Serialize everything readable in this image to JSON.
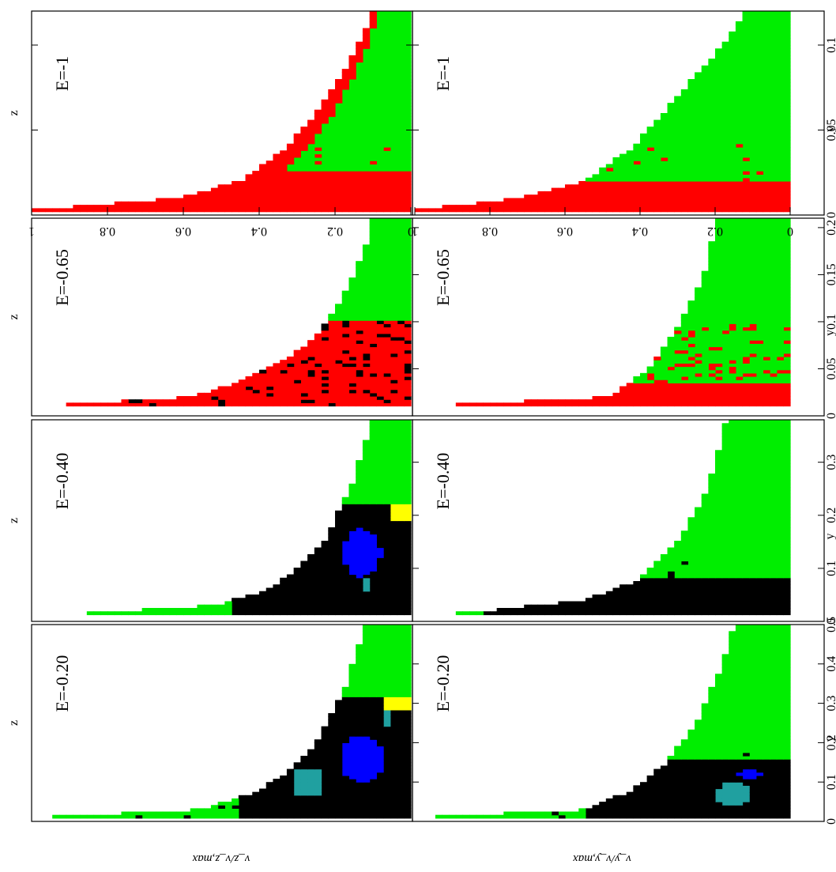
{
  "figure": {
    "axis_label_top_rows": "z",
    "axis_label_bottom_rows": "y",
    "ylabel_top_row": "v_z/v_z,max",
    "ylabel_bottom_row": "v_y/v_y,max"
  },
  "colors": {
    "regular_green": "#00ee00",
    "red": "#ff0000",
    "black": "#000000",
    "blue": "#0000ff",
    "teal": "#20a0a0",
    "yellow": "#ffff00",
    "magenta": "#ff00ff",
    "orange": "#ff9900"
  },
  "chart_data": [
    {
      "type": "heatmap",
      "row": "z",
      "energy_label": "E=-1",
      "xlabel": "z",
      "ylabel": "v_z/v_z,max",
      "xlim": [
        0,
        0.12
      ],
      "ylim": [
        0,
        1
      ],
      "xticks": [
        0,
        0.05,
        0.1
      ],
      "xtick_labels": [],
      "yticks": [
        0,
        0.2,
        0.4,
        0.6,
        0.8,
        1
      ],
      "ytick_labels": [
        "0",
        "0.2",
        "0.4",
        "0.6",
        "0.8",
        "1"
      ],
      "boundary": [
        [
          0.003,
          1.0
        ],
        [
          0.01,
          0.62
        ],
        [
          0.02,
          0.45
        ],
        [
          0.04,
          0.33
        ],
        [
          0.06,
          0.25
        ],
        [
          0.08,
          0.19
        ],
        [
          0.1,
          0.14
        ],
        [
          0.12,
          0.1
        ]
      ],
      "regions": [
        {
          "color": "red",
          "x": [
            0.003,
            0.025
          ],
          "y": [
            0.0,
            1.0
          ]
        },
        {
          "color": "red",
          "x": [
            0.025,
            0.12
          ],
          "y_frac_of_boundary": [
            0.82,
            1.0
          ]
        }
      ]
    },
    {
      "type": "heatmap",
      "row": "z",
      "energy_label": "E=-0.65",
      "xlabel": "z",
      "ylabel": "v_z/v_z,max",
      "xlim": [
        0,
        0.21
      ],
      "ylim": [
        0,
        1
      ],
      "boundary": [
        [
          0.01,
          1.0
        ],
        [
          0.02,
          0.58
        ],
        [
          0.04,
          0.43
        ],
        [
          0.06,
          0.33
        ],
        [
          0.08,
          0.26
        ],
        [
          0.1,
          0.22
        ],
        [
          0.14,
          0.16
        ],
        [
          0.2,
          0.1
        ]
      ],
      "regions": [
        {
          "color": "red",
          "x": [
            0.005,
            0.1
          ],
          "y": [
            0.0,
            1.0
          ]
        },
        {
          "color": "black",
          "x": [
            0.005,
            0.1
          ],
          "scatter": true
        }
      ]
    },
    {
      "type": "heatmap",
      "row": "z",
      "energy_label": "E=-0.40",
      "xlabel": "z",
      "ylabel": "v_z/v_z,max",
      "xlim": [
        0,
        0.38
      ],
      "ylim": [
        0,
        1
      ],
      "boundary": [
        [
          0.01,
          1.0
        ],
        [
          0.03,
          0.52
        ],
        [
          0.06,
          0.38
        ],
        [
          0.1,
          0.3
        ],
        [
          0.15,
          0.23
        ],
        [
          0.25,
          0.16
        ],
        [
          0.38,
          0.1
        ]
      ],
      "regions": [
        {
          "color": "black",
          "x": [
            0.005,
            0.22
          ],
          "y": [
            0.0,
            0.48
          ]
        },
        {
          "color": "blue",
          "center": [
            0.13,
            0.13
          ],
          "size": [
            0.09,
            0.1
          ]
        },
        {
          "color": "yellow",
          "x": [
            0.19,
            0.22
          ],
          "y": [
            0.0,
            0.05
          ]
        },
        {
          "color": "teal",
          "x": [
            0.06,
            0.08
          ],
          "y": [
            0.1,
            0.12
          ]
        }
      ]
    },
    {
      "type": "heatmap",
      "row": "z",
      "energy_label": "E=-0.20",
      "xlabel": "z",
      "ylabel": "v_z/v_z,max",
      "xlim": [
        0,
        0.5
      ],
      "ylim": [
        0,
        1
      ],
      "boundary": [
        [
          0.01,
          1.0
        ],
        [
          0.03,
          0.56
        ],
        [
          0.07,
          0.42
        ],
        [
          0.12,
          0.33
        ],
        [
          0.2,
          0.25
        ],
        [
          0.35,
          0.17
        ],
        [
          0.5,
          0.12
        ]
      ],
      "regions": [
        {
          "color": "black",
          "x": [
            0.01,
            0.32
          ],
          "y": [
            0.0,
            0.46
          ]
        },
        {
          "color": "blue",
          "center": [
            0.16,
            0.13
          ],
          "size": [
            0.12,
            0.12
          ]
        },
        {
          "color": "yellow",
          "x": [
            0.28,
            0.32
          ],
          "y": [
            0.0,
            0.08
          ]
        },
        {
          "color": "teal",
          "x": [
            0.24,
            0.28
          ],
          "y": [
            0.05,
            0.08
          ]
        },
        {
          "color": "teal",
          "x": [
            0.07,
            0.13
          ],
          "y": [
            0.24,
            0.3
          ]
        }
      ]
    },
    {
      "type": "heatmap",
      "row": "y",
      "energy_label": "E=-1",
      "xlabel": "y",
      "ylabel": "v_y/v_y,max",
      "xlim": [
        0,
        0.12
      ],
      "ylim": [
        0,
        1
      ],
      "xticks": [
        0,
        0.05,
        0.1
      ],
      "xtick_labels": [
        "0",
        "0.05",
        "0.1"
      ],
      "yticks": [
        0,
        0.2,
        0.4,
        0.6,
        0.8,
        1
      ],
      "ytick_labels": [
        "0",
        "0.2",
        "0.4",
        "0.6",
        "0.8",
        "1"
      ],
      "boundary": [
        [
          0.003,
          1.0
        ],
        [
          0.01,
          0.72
        ],
        [
          0.02,
          0.55
        ],
        [
          0.04,
          0.42
        ],
        [
          0.06,
          0.34
        ],
        [
          0.08,
          0.26
        ],
        [
          0.1,
          0.18
        ],
        [
          0.12,
          0.12
        ]
      ],
      "regions": [
        {
          "color": "red",
          "x": [
            0.003,
            0.02
          ],
          "y": [
            0.0,
            1.0
          ]
        }
      ]
    },
    {
      "type": "heatmap",
      "row": "y",
      "energy_label": "E=-0.65",
      "xlabel": "y",
      "ylabel": "v_y/v_y,max",
      "xlim": [
        0,
        0.21
      ],
      "ylim": [
        0,
        1
      ],
      "xticks": [
        0,
        0.05,
        0.1,
        0.15,
        0.2
      ],
      "xtick_labels": [
        "0",
        "0.05",
        "0.1",
        "0.15",
        "0.2"
      ],
      "boundary": [
        [
          0.01,
          1.0
        ],
        [
          0.02,
          0.48
        ],
        [
          0.05,
          0.38
        ],
        [
          0.1,
          0.29
        ],
        [
          0.15,
          0.23
        ],
        [
          0.2,
          0.2
        ]
      ],
      "regions": [
        {
          "color": "red",
          "x": [
            0.005,
            0.035
          ],
          "y": [
            0.0,
            1.0
          ]
        },
        {
          "color": "red",
          "x": [
            0.035,
            0.1
          ],
          "scatter": true
        }
      ]
    },
    {
      "type": "heatmap",
      "row": "y",
      "energy_label": "E=-0.40",
      "xlabel": "y",
      "ylabel": "v_y/v_y,max",
      "xlim": [
        0,
        0.38
      ],
      "ylim": [
        0,
        1
      ],
      "xticks": [
        0,
        0.1,
        0.2,
        0.3
      ],
      "xtick_labels": [
        "0",
        "0.1",
        "0.2",
        "0.3"
      ],
      "boundary": [
        [
          0.01,
          1.0
        ],
        [
          0.02,
          0.82
        ],
        [
          0.04,
          0.55
        ],
        [
          0.08,
          0.4
        ],
        [
          0.15,
          0.3
        ],
        [
          0.25,
          0.22
        ],
        [
          0.38,
          0.17
        ]
      ],
      "regions": [
        {
          "color": "black",
          "x": [
            0.005,
            0.08
          ],
          "y": [
            0.0,
            0.82
          ]
        }
      ]
    },
    {
      "type": "heatmap",
      "row": "y",
      "energy_label": "E=-0.20",
      "xlabel": "y",
      "ylabel": "v_y/v_y,max",
      "xlim": [
        0,
        0.5
      ],
      "ylim": [
        0,
        1
      ],
      "xticks": [
        0,
        0.1,
        0.2,
        0.3,
        0.4,
        0.5
      ],
      "xtick_labels": [
        "0",
        "0.1",
        "0.2",
        "0.3",
        "0.4",
        "0.5"
      ],
      "boundary": [
        [
          0.01,
          1.0
        ],
        [
          0.03,
          0.55
        ],
        [
          0.08,
          0.42
        ],
        [
          0.15,
          0.33
        ],
        [
          0.25,
          0.25
        ],
        [
          0.4,
          0.18
        ],
        [
          0.5,
          0.15
        ]
      ],
      "regions": [
        {
          "color": "black",
          "x": [
            0.01,
            0.16
          ],
          "y": [
            0.0,
            0.55
          ]
        },
        {
          "color": "teal",
          "center": [
            0.07,
            0.15
          ],
          "size": [
            0.06,
            0.1
          ]
        },
        {
          "color": "blue",
          "center": [
            0.12,
            0.11
          ],
          "size": [
            0.03,
            0.06
          ]
        }
      ]
    }
  ]
}
